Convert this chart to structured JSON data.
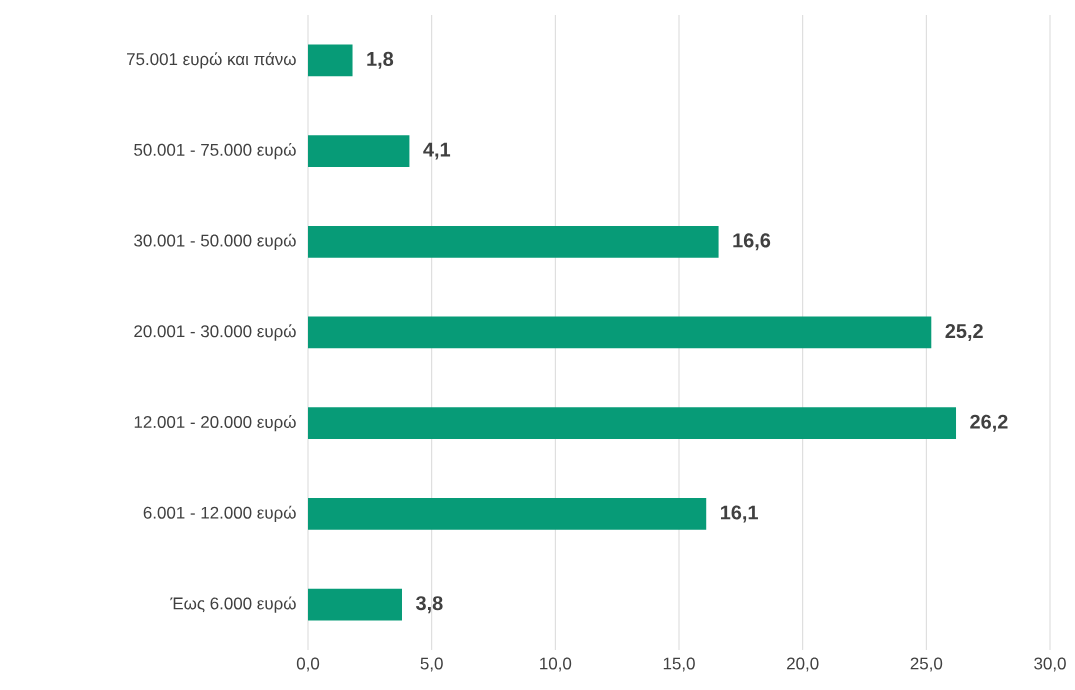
{
  "chart_data": {
    "type": "bar",
    "orientation": "horizontal",
    "categories": [
      "75.001 ευρώ και πάνω",
      "50.001 - 75.000 ευρώ",
      "30.001 - 50.000 ευρώ",
      "20.001 - 30.000 ευρώ",
      "12.001 - 20.000 ευρώ",
      "6.001 - 12.000 ευρώ",
      "Έως 6.000 ευρώ"
    ],
    "values": [
      1.8,
      4.1,
      16.6,
      25.2,
      26.2,
      16.1,
      3.8
    ],
    "value_labels": [
      "1,8",
      "4,1",
      "16,6",
      "25,2",
      "26,2",
      "16,1",
      "3,8"
    ],
    "color": "#079b77",
    "xlim": [
      0,
      30
    ],
    "xticks": [
      {
        "value": 0,
        "label": "0,0"
      },
      {
        "value": 5,
        "label": "5,0"
      },
      {
        "value": 10,
        "label": "10,0"
      },
      {
        "value": 15,
        "label": "15,0"
      },
      {
        "value": 20,
        "label": "20,0"
      },
      {
        "value": 25,
        "label": "25,0"
      },
      {
        "value": 30,
        "label": "30,0"
      }
    ],
    "grid": "x"
  }
}
